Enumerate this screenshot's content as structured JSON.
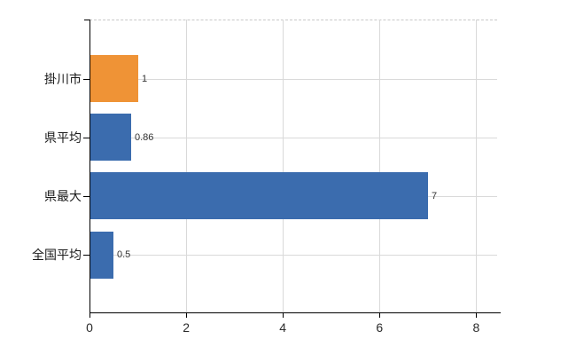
{
  "chart_data": {
    "type": "bar",
    "orientation": "horizontal",
    "title": "",
    "xlabel": "",
    "ylabel": "",
    "categories": [
      "掛川市",
      "県平均",
      "県最大",
      "全国平均"
    ],
    "values": [
      1,
      0.86,
      7,
      0.5
    ],
    "value_labels": [
      "1",
      "0.86",
      "7",
      "0.5"
    ],
    "bar_colors": [
      "#ef9336",
      "#3b6cae",
      "#3b6cae",
      "#3b6cae"
    ],
    "xlim": [
      0,
      8.4
    ],
    "x_ticks": [
      0,
      2,
      4,
      6,
      8
    ],
    "x_tick_labels": [
      "0",
      "2",
      "4",
      "6",
      "8"
    ],
    "grid": true,
    "legend": false
  },
  "colors": {
    "background": "#ffffff",
    "axis": "#000000",
    "gridline": "#d9d9d9",
    "plot_border": "#c8c8c8",
    "value_label": "#333333",
    "category_label": "#1a1a1a",
    "bar_orange": "#ef9336",
    "bar_blue": "#3b6cae"
  }
}
